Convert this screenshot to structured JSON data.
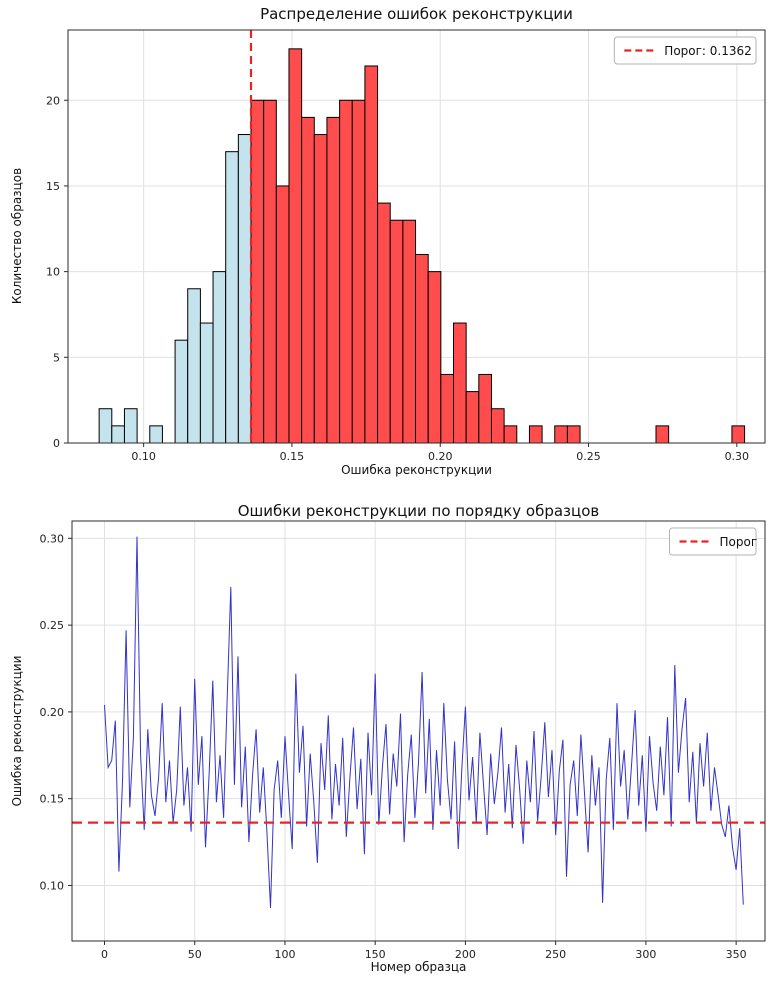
{
  "figure": {
    "background": "#ffffff"
  },
  "chart_data": [
    {
      "type": "histogram",
      "title": "Распределение ошибок реконструкции",
      "xlabel": "Ошибка реконструкции",
      "ylabel": "Количество образцов",
      "xlim": [
        0.0745,
        0.3095
      ],
      "ylim": [
        0,
        24.1
      ],
      "xticks": [
        0.1,
        0.15,
        0.2,
        0.25,
        0.3
      ],
      "xtick_labels": [
        "0.10",
        "0.15",
        "0.20",
        "0.25",
        "0.30"
      ],
      "yticks": [
        0,
        5,
        10,
        15,
        20
      ],
      "ytick_labels": [
        "0",
        "5",
        "10",
        "15",
        "20"
      ],
      "grid": true,
      "bin_start": 0.085,
      "bin_width": 0.004267,
      "counts": [
        2,
        1,
        2,
        0,
        1,
        0,
        6,
        9,
        7,
        10,
        17,
        18,
        20,
        20,
        15,
        23,
        19,
        18,
        19,
        20,
        20,
        22,
        14,
        13,
        13,
        11,
        10,
        4,
        7,
        3,
        4,
        2,
        1,
        0,
        1,
        0,
        1,
        1,
        0,
        0,
        0,
        0,
        0,
        0,
        1,
        0,
        0,
        0,
        0,
        0,
        1
      ],
      "threshold": 0.1362,
      "legend": [
        {
          "label": "Порог: 0.1362",
          "style": "dashed",
          "color": "#ee2222"
        }
      ],
      "legend_position": "upper right",
      "colors": {
        "below": "#c5e3ed",
        "above": "#ff4c4c",
        "edge": "#000000",
        "threshold": "#ee2222"
      }
    },
    {
      "type": "line",
      "title": "Ошибки реконструкции по порядку образцов",
      "xlabel": "Номер образца",
      "ylabel": "Ошибка реконструкции",
      "xlim": [
        -18,
        366
      ],
      "ylim": [
        0.068,
        0.31
      ],
      "xticks": [
        0,
        50,
        100,
        150,
        200,
        250,
        300,
        350
      ],
      "xtick_labels": [
        "0",
        "50",
        "100",
        "150",
        "200",
        "250",
        "300",
        "350"
      ],
      "yticks": [
        0.1,
        0.15,
        0.2,
        0.25,
        0.3
      ],
      "ytick_labels": [
        "0.10",
        "0.15",
        "0.20",
        "0.25",
        "0.30"
      ],
      "grid": true,
      "x_step": 2,
      "values": [
        0.204,
        0.168,
        0.172,
        0.195,
        0.108,
        0.16,
        0.247,
        0.145,
        0.185,
        0.301,
        0.175,
        0.132,
        0.19,
        0.152,
        0.14,
        0.162,
        0.205,
        0.148,
        0.172,
        0.136,
        0.155,
        0.203,
        0.146,
        0.168,
        0.131,
        0.219,
        0.158,
        0.186,
        0.122,
        0.165,
        0.218,
        0.148,
        0.175,
        0.139,
        0.208,
        0.272,
        0.158,
        0.232,
        0.145,
        0.18,
        0.125,
        0.163,
        0.19,
        0.142,
        0.168,
        0.131,
        0.087,
        0.155,
        0.172,
        0.139,
        0.186,
        0.152,
        0.121,
        0.222,
        0.165,
        0.192,
        0.134,
        0.176,
        0.148,
        0.113,
        0.182,
        0.155,
        0.198,
        0.138,
        0.17,
        0.146,
        0.185,
        0.128,
        0.162,
        0.191,
        0.144,
        0.173,
        0.118,
        0.188,
        0.152,
        0.222,
        0.135,
        0.168,
        0.193,
        0.141,
        0.176,
        0.157,
        0.199,
        0.125,
        0.164,
        0.187,
        0.139,
        0.171,
        0.223,
        0.153,
        0.196,
        0.132,
        0.178,
        0.146,
        0.205,
        0.161,
        0.138,
        0.183,
        0.121,
        0.167,
        0.203,
        0.149,
        0.174,
        0.136,
        0.188,
        0.158,
        0.129,
        0.176,
        0.147,
        0.165,
        0.191,
        0.142,
        0.17,
        0.133,
        0.181,
        0.156,
        0.124,
        0.172,
        0.148,
        0.189,
        0.137,
        0.163,
        0.194,
        0.151,
        0.178,
        0.129,
        0.166,
        0.184,
        0.105,
        0.158,
        0.172,
        0.14,
        0.187,
        0.153,
        0.119,
        0.175,
        0.146,
        0.168,
        0.09,
        0.161,
        0.185,
        0.132,
        0.205,
        0.157,
        0.178,
        0.138,
        0.169,
        0.201,
        0.146,
        0.175,
        0.131,
        0.186,
        0.159,
        0.143,
        0.18,
        0.152,
        0.197,
        0.134,
        0.227,
        0.165,
        0.19,
        0.208,
        0.148,
        0.177,
        0.136,
        0.182,
        0.157,
        0.188,
        0.143,
        0.168,
        0.152,
        0.135,
        0.128,
        0.146,
        0.122,
        0.109,
        0.133,
        0.089
      ],
      "threshold": 0.1362,
      "legend": [
        {
          "label": "Порог",
          "style": "dashed",
          "color": "#ee2222"
        }
      ],
      "legend_position": "upper right",
      "colors": {
        "line": "#3333cc",
        "threshold": "#ee2222"
      }
    }
  ]
}
